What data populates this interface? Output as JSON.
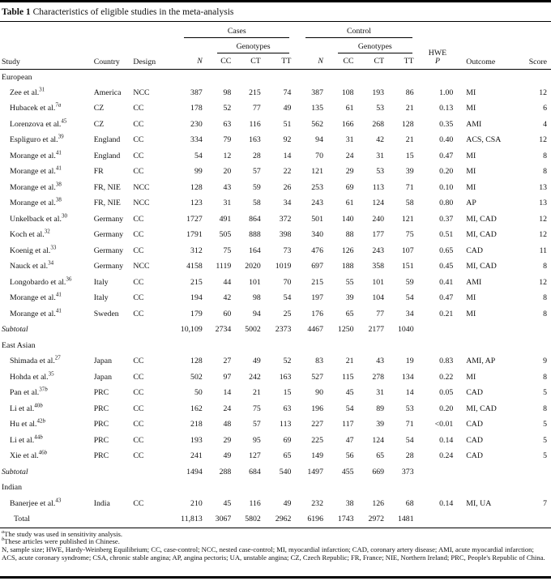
{
  "colors": {
    "background": "#ffffff",
    "text": "#111111",
    "rule": "#000000"
  },
  "table": {
    "title_label": "Table 1",
    "title_text": "Characteristics of eligible studies in the meta-analysis",
    "header": {
      "study": "Study",
      "country": "Country",
      "design": "Design",
      "cases": "Cases",
      "control": "Control",
      "genotypes": "Genotypes",
      "n": "N",
      "cc": "CC",
      "ct": "CT",
      "tt": "TT",
      "hwe_line1": "HWE",
      "hwe_line2": "P",
      "outcome": "Outcome",
      "score": "Score"
    },
    "sections": [
      {
        "label": "European",
        "rows": [
          {
            "study": "Zee et al.",
            "ref": "31",
            "country": "America",
            "design": "NCC",
            "cases": [
              "387",
              "98",
              "215",
              "74"
            ],
            "control": [
              "387",
              "108",
              "193",
              "86"
            ],
            "hwe": "1.00",
            "outcome": "MI",
            "score": "12"
          },
          {
            "study": "Hubacek et al.",
            "ref": "7a",
            "country": "CZ",
            "design": "CC",
            "cases": [
              "178",
              "52",
              "77",
              "49"
            ],
            "control": [
              "135",
              "61",
              "53",
              "21"
            ],
            "hwe": "0.13",
            "outcome": "MI",
            "score": "6"
          },
          {
            "study": "Lorenzova et al.",
            "ref": "45",
            "country": "CZ",
            "design": "CC",
            "cases": [
              "230",
              "63",
              "116",
              "51"
            ],
            "control": [
              "562",
              "166",
              "268",
              "128"
            ],
            "hwe": "0.35",
            "outcome": "AMI",
            "score": "4"
          },
          {
            "study": "Espliguro et al.",
            "ref": "39",
            "country": "England",
            "design": "CC",
            "cases": [
              "334",
              "79",
              "163",
              "92"
            ],
            "control": [
              "94",
              "31",
              "42",
              "21"
            ],
            "hwe": "0.40",
            "outcome": "ACS, CSA",
            "score": "12"
          },
          {
            "study": "Morange et al.",
            "ref": "41",
            "country": "England",
            "design": "CC",
            "cases": [
              "54",
              "12",
              "28",
              "14"
            ],
            "control": [
              "70",
              "24",
              "31",
              "15"
            ],
            "hwe": "0.47",
            "outcome": "MI",
            "score": "8"
          },
          {
            "study": "Morange et al.",
            "ref": "41",
            "country": "FR",
            "design": "CC",
            "cases": [
              "99",
              "20",
              "57",
              "22"
            ],
            "control": [
              "121",
              "29",
              "53",
              "39"
            ],
            "hwe": "0.20",
            "outcome": "MI",
            "score": "8"
          },
          {
            "study": "Morange et al.",
            "ref": "38",
            "country": "FR, NIE",
            "design": "NCC",
            "cases": [
              "128",
              "43",
              "59",
              "26"
            ],
            "control": [
              "253",
              "69",
              "113",
              "71"
            ],
            "hwe": "0.10",
            "outcome": "MI",
            "score": "13"
          },
          {
            "study": "Morange et al.",
            "ref": "38",
            "country": "FR, NIE",
            "design": "NCC",
            "cases": [
              "123",
              "31",
              "58",
              "34"
            ],
            "control": [
              "243",
              "61",
              "124",
              "58"
            ],
            "hwe": "0.80",
            "outcome": "AP",
            "score": "13"
          },
          {
            "study": "Unkelback et al.",
            "ref": "30",
            "country": "Germany",
            "design": "CC",
            "cases": [
              "1727",
              "491",
              "864",
              "372"
            ],
            "control": [
              "501",
              "140",
              "240",
              "121"
            ],
            "hwe": "0.37",
            "outcome": "MI, CAD",
            "score": "12"
          },
          {
            "study": "Koch et al.",
            "ref": "32",
            "country": "Germany",
            "design": "CC",
            "cases": [
              "1791",
              "505",
              "888",
              "398"
            ],
            "control": [
              "340",
              "88",
              "177",
              "75"
            ],
            "hwe": "0.51",
            "outcome": "MI, CAD",
            "score": "12"
          },
          {
            "study": "Koenig et al.",
            "ref": "33",
            "country": "Germany",
            "design": "CC",
            "cases": [
              "312",
              "75",
              "164",
              "73"
            ],
            "control": [
              "476",
              "126",
              "243",
              "107"
            ],
            "hwe": "0.65",
            "outcome": "CAD",
            "score": "11"
          },
          {
            "study": "Nauck et al.",
            "ref": "34",
            "country": "Germany",
            "design": "NCC",
            "cases": [
              "4158",
              "1119",
              "2020",
              "1019"
            ],
            "control": [
              "697",
              "188",
              "358",
              "151"
            ],
            "hwe": "0.45",
            "outcome": "MI, CAD",
            "score": "8"
          },
          {
            "study": "Longobardo et al.",
            "ref": "36",
            "country": "Italy",
            "design": "CC",
            "cases": [
              "215",
              "44",
              "101",
              "70"
            ],
            "control": [
              "215",
              "55",
              "101",
              "59"
            ],
            "hwe": "0.41",
            "outcome": "AMI",
            "score": "12"
          },
          {
            "study": "Morange et al.",
            "ref": "41",
            "country": "Italy",
            "design": "CC",
            "cases": [
              "194",
              "42",
              "98",
              "54"
            ],
            "control": [
              "197",
              "39",
              "104",
              "54"
            ],
            "hwe": "0.47",
            "outcome": "MI",
            "score": "8"
          },
          {
            "study": "Morange et al.",
            "ref": "41",
            "country": "Sweden",
            "design": "CC",
            "cases": [
              "179",
              "60",
              "94",
              "25"
            ],
            "control": [
              "176",
              "65",
              "77",
              "34"
            ],
            "hwe": "0.21",
            "outcome": "MI",
            "score": "8"
          }
        ],
        "subtotal": {
          "label": "Subtotal",
          "cases": [
            "10,109",
            "2734",
            "5002",
            "2373"
          ],
          "control": [
            "4467",
            "1250",
            "2177",
            "1040"
          ]
        }
      },
      {
        "label": "East Asian",
        "rows": [
          {
            "study": "Shimada et al.",
            "ref": "27",
            "country": "Japan",
            "design": "CC",
            "cases": [
              "128",
              "27",
              "49",
              "52"
            ],
            "control": [
              "83",
              "21",
              "43",
              "19"
            ],
            "hwe": "0.83",
            "outcome": "AMI, AP",
            "score": "9"
          },
          {
            "study": "Hohda et al.",
            "ref": "35",
            "country": "Japan",
            "design": "CC",
            "cases": [
              "502",
              "97",
              "242",
              "163"
            ],
            "control": [
              "527",
              "115",
              "278",
              "134"
            ],
            "hwe": "0.22",
            "outcome": "MI",
            "score": "8"
          },
          {
            "study": "Pan et al.",
            "ref": "37b",
            "country": "PRC",
            "design": "CC",
            "cases": [
              "50",
              "14",
              "21",
              "15"
            ],
            "control": [
              "90",
              "45",
              "31",
              "14"
            ],
            "hwe": "0.05",
            "outcome": "CAD",
            "score": "5"
          },
          {
            "study": "Li et al.",
            "ref": "40b",
            "country": "PRC",
            "design": "CC",
            "cases": [
              "162",
              "24",
              "75",
              "63"
            ],
            "control": [
              "196",
              "54",
              "89",
              "53"
            ],
            "hwe": "0.20",
            "outcome": "MI, CAD",
            "score": "8"
          },
          {
            "study": "Hu et al.",
            "ref": "42b",
            "country": "PRC",
            "design": "CC",
            "cases": [
              "218",
              "48",
              "57",
              "113"
            ],
            "control": [
              "227",
              "117",
              "39",
              "71"
            ],
            "hwe": "<0.01",
            "outcome": "CAD",
            "score": "5"
          },
          {
            "study": "Li et al.",
            "ref": "44b",
            "country": "PRC",
            "design": "CC",
            "cases": [
              "193",
              "29",
              "95",
              "69"
            ],
            "control": [
              "225",
              "47",
              "124",
              "54"
            ],
            "hwe": "0.14",
            "outcome": "CAD",
            "score": "5"
          },
          {
            "study": "Xie et al.",
            "ref": "46b",
            "country": "PRC",
            "design": "CC",
            "cases": [
              "241",
              "49",
              "127",
              "65"
            ],
            "control": [
              "149",
              "56",
              "65",
              "28"
            ],
            "hwe": "0.24",
            "outcome": "CAD",
            "score": "5"
          }
        ],
        "subtotal": {
          "label": "Subtotal",
          "cases": [
            "1494",
            "288",
            "684",
            "540"
          ],
          "control": [
            "1497",
            "455",
            "669",
            "373"
          ]
        }
      },
      {
        "label": "Indian",
        "rows": [
          {
            "study": "Banerjee et al.",
            "ref": "43",
            "country": "India",
            "design": "CC",
            "cases": [
              "210",
              "45",
              "116",
              "49"
            ],
            "control": [
              "232",
              "38",
              "126",
              "68"
            ],
            "hwe": "0.14",
            "outcome": "MI, UA",
            "score": "7"
          }
        ],
        "subtotal": null
      }
    ],
    "total": {
      "label": "Total",
      "cases": [
        "11,813",
        "3067",
        "5802",
        "2962"
      ],
      "control": [
        "6196",
        "1743",
        "2972",
        "1481"
      ]
    },
    "footnotes": [
      {
        "marker": "a",
        "text": "The study was used in sensitivity analysis."
      },
      {
        "marker": "b",
        "text": "These articles were published in Chinese."
      },
      {
        "marker": "",
        "text": "N, sample size; HWE, Hardy-Weinberg Equilibrium; CC, case-control; NCC, nested case-control; MI, myocardial infarction; CAD, coronary artery disease; AMI, acute myocardial infarction; ACS, acute coronary syndrome; CSA, chronic stable angina; AP, angina pectoris; UA, unstable angina; CZ, Czech Republic; FR, France; NIE, Northern Ireland; PRC, People's Republic of China."
      }
    ]
  }
}
